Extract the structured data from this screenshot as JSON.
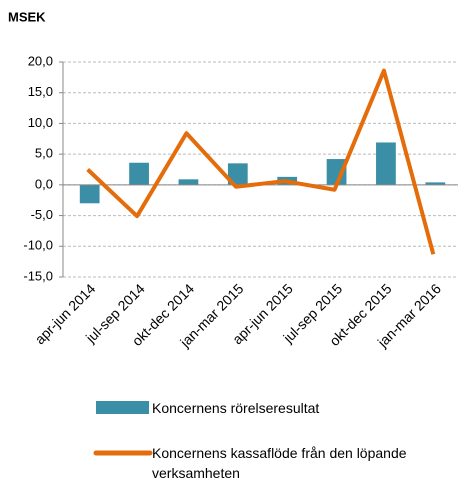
{
  "chart_data": {
    "type": "bar-line",
    "title": "MSEK",
    "categories": [
      "apr-jun 2014",
      "jul-sep 2014",
      "okt-dec 2014",
      "jan-mar 2015",
      "apr-jun 2015",
      "jul-sep 2015",
      "okt-dec 2015",
      "jan-mar 2016"
    ],
    "series": [
      {
        "name": "Koncernens rörelseresultat",
        "type": "bar",
        "color": "#3a8ea6",
        "values": [
          -3.0,
          3.6,
          0.9,
          3.5,
          1.3,
          4.2,
          6.9,
          0.4
        ]
      },
      {
        "name": "Koncernens kassaflöde från den löpande verksamheten",
        "type": "line",
        "color": "#e46c0a",
        "values": [
          2.5,
          -5.1,
          8.4,
          -0.3,
          0.6,
          -0.8,
          18.6,
          -11.3
        ]
      }
    ],
    "ylim": [
      -15,
      20
    ],
    "yticks": [
      {
        "value": -15,
        "label": "-15,0"
      },
      {
        "value": -10,
        "label": "-10,0"
      },
      {
        "value": -5,
        "label": "-5,0"
      },
      {
        "value": 0,
        "label": "0,0"
      },
      {
        "value": 5,
        "label": "5,0"
      },
      {
        "value": 10,
        "label": "10,0"
      },
      {
        "value": 15,
        "label": "15,0"
      },
      {
        "value": 20,
        "label": "20,0"
      }
    ],
    "grid": true
  }
}
